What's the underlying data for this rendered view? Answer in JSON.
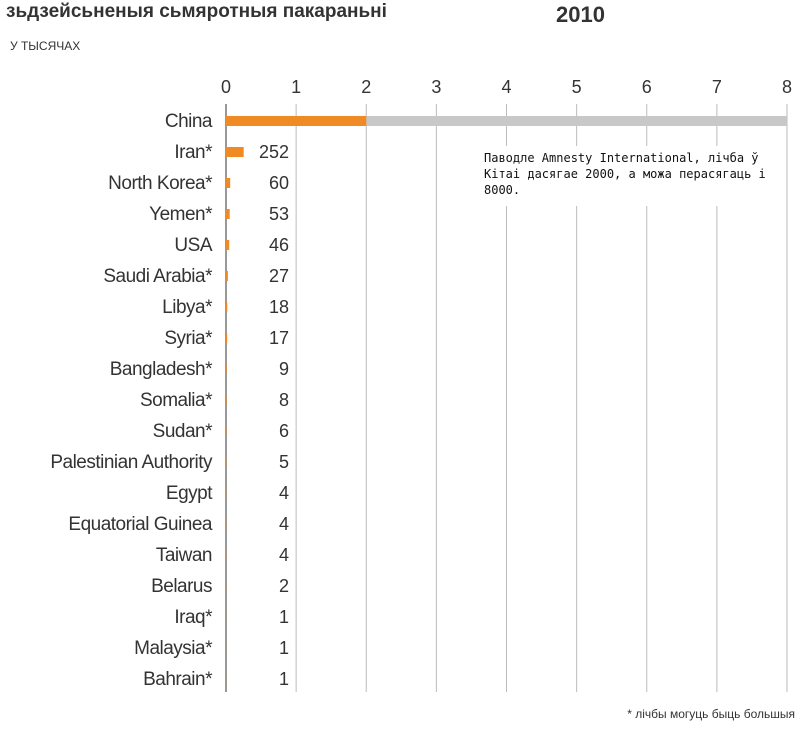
{
  "chart_data": {
    "type": "hbar",
    "title": "зьдзейсьненыя сьмяротныя пакараньні",
    "year": "2010",
    "subtitle": "У ТЫСЯЧАХ",
    "annotation": "Паводле Amnesty International, лічба ў Кітаі дасягае 2000, а можа перасягаць і 8000.",
    "footnote": "* лічбы могуць быць большыя",
    "categories": [
      "China",
      "Iran*",
      "North Korea*",
      "Yemen*",
      "USA",
      "Saudi Arabia*",
      "Libya*",
      "Syria*",
      "Bangladesh*",
      "Somalia*",
      "Sudan*",
      "Palestinian Authority",
      "Egypt",
      "Equatorial Guinea",
      "Taiwan",
      "Belarus",
      "Iraq*",
      "Malaysia*",
      "Bahrain*"
    ],
    "values": [
      2,
      0.252,
      0.06,
      0.053,
      0.046,
      0.027,
      0.018,
      0.017,
      0.009,
      0.008,
      0.006,
      0.005,
      0.004,
      0.004,
      0.004,
      0.002,
      0.001,
      0.001,
      0.001
    ],
    "value_labels": [
      null,
      "252",
      "60",
      "53",
      "46",
      "27",
      "18",
      "17",
      "9",
      "8",
      "6",
      "5",
      "4",
      "4",
      "4",
      "2",
      "1",
      "1",
      "1"
    ],
    "value_high": [
      8,
      null,
      null,
      null,
      null,
      null,
      null,
      null,
      null,
      null,
      null,
      null,
      null,
      null,
      null,
      null,
      null,
      null,
      null
    ],
    "color": "#f08a24",
    "high_color": "#c8c8c8",
    "xlim": [
      0,
      8
    ],
    "xticks": [
      0,
      1,
      2,
      3,
      4,
      5,
      6,
      7,
      8
    ],
    "grid": true
  }
}
